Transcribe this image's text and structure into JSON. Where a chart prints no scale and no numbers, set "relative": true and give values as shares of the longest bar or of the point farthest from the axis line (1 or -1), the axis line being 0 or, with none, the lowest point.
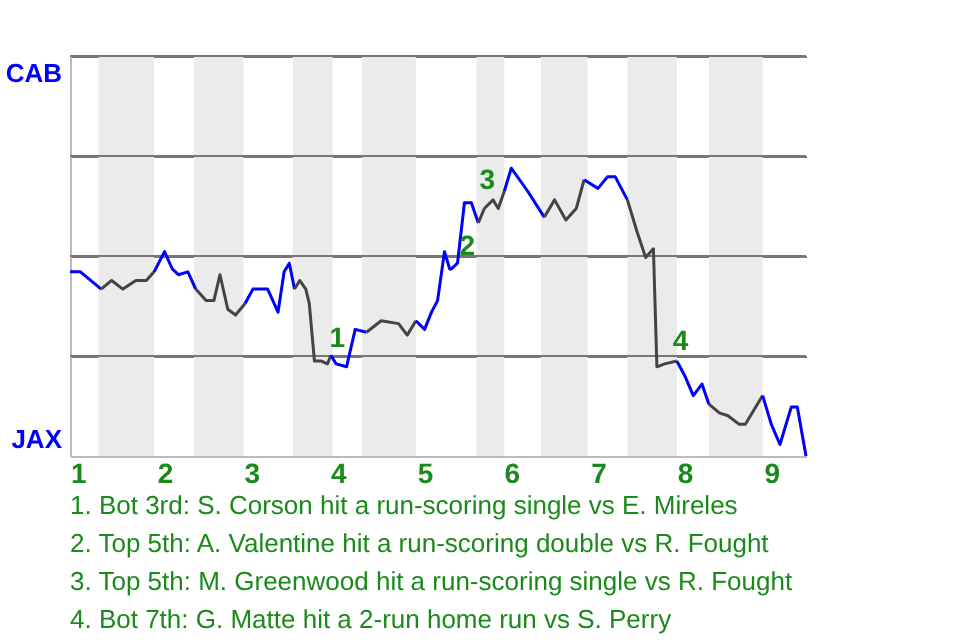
{
  "chart_data": {
    "type": "line",
    "relative": true,
    "series": [
      {
        "color": "#0000ff",
        "x": [
          0.91,
          1.03,
          1.27
        ],
        "values": [
          0.64,
          0.64,
          0.58
        ]
      },
      {
        "color": "#444444",
        "x": [
          1.27,
          1.39,
          1.52,
          1.67,
          1.79,
          1.88
        ],
        "values": [
          0.58,
          0.61,
          0.58,
          0.61,
          0.61,
          0.64
        ]
      },
      {
        "color": "#0000ff",
        "x": [
          1.88,
          2.0,
          2.09,
          2.16,
          2.27,
          2.36
        ],
        "values": [
          0.64,
          0.71,
          0.65,
          0.63,
          0.64,
          0.58
        ]
      },
      {
        "color": "#444444",
        "x": [
          2.36,
          2.48,
          2.57,
          2.64,
          2.73,
          2.82,
          2.93
        ],
        "values": [
          0.58,
          0.54,
          0.54,
          0.63,
          0.51,
          0.49,
          0.53
        ]
      },
      {
        "color": "#0000ff",
        "x": [
          2.93,
          3.02,
          3.19,
          3.31,
          3.38,
          3.44,
          3.5
        ],
        "values": [
          0.53,
          0.58,
          0.58,
          0.5,
          0.64,
          0.67,
          0.58
        ]
      },
      {
        "color": "#444444",
        "x": [
          3.5,
          3.56,
          3.63,
          3.67,
          3.73,
          3.81,
          3.88,
          3.92
        ],
        "values": [
          0.58,
          0.61,
          0.58,
          0.53,
          0.33,
          0.33,
          0.32,
          0.35
        ]
      },
      {
        "color": "#0000ff",
        "x": [
          3.92,
          3.98,
          4.1,
          4.2,
          4.33
        ],
        "values": [
          0.35,
          0.32,
          0.31,
          0.44,
          0.43
        ]
      },
      {
        "color": "#444444",
        "x": [
          4.33,
          4.5,
          4.7,
          4.8,
          4.9
        ],
        "values": [
          0.43,
          0.47,
          0.46,
          0.42,
          0.47
        ]
      },
      {
        "color": "#0000ff",
        "x": [
          4.9,
          5.0,
          5.08,
          5.15,
          5.23,
          5.29,
          5.31,
          5.38,
          5.46,
          5.54,
          5.62
        ],
        "values": [
          0.47,
          0.44,
          0.5,
          0.54,
          0.71,
          0.65,
          0.65,
          0.67,
          0.88,
          0.88,
          0.81
        ]
      },
      {
        "color": "#444444",
        "x": [
          5.62,
          5.69,
          5.79,
          5.85,
          5.92
        ],
        "values": [
          0.81,
          0.86,
          0.89,
          0.86,
          0.92
        ]
      },
      {
        "color": "#0000ff",
        "x": [
          5.92,
          6.0,
          6.19,
          6.38
        ],
        "values": [
          0.92,
          1,
          0.92,
          0.83
        ]
      },
      {
        "color": "#444444",
        "x": [
          6.38,
          6.5,
          6.63,
          6.75,
          6.84
        ],
        "values": [
          0.83,
          0.89,
          0.82,
          0.86,
          0.96
        ]
      },
      {
        "color": "#0000ff",
        "x": [
          6.84,
          7.0,
          7.11,
          7.2,
          7.34
        ],
        "values": [
          0.96,
          0.93,
          0.97,
          0.97,
          0.89
        ]
      },
      {
        "color": "#444444",
        "x": [
          7.34,
          7.45,
          7.55,
          7.64,
          7.68,
          7.77,
          7.91
        ],
        "values": [
          0.89,
          0.78,
          0.69,
          0.72,
          0.31,
          0.32,
          0.33
        ]
      },
      {
        "color": "#0000ff",
        "x": [
          7.91,
          8.0,
          8.1,
          8.2,
          8.28
        ],
        "values": [
          0.33,
          0.28,
          0.21,
          0.25,
          0.18
        ]
      },
      {
        "color": "#444444",
        "x": [
          8.28,
          8.4,
          8.5,
          8.63,
          8.7,
          8.78,
          8.9
        ],
        "values": [
          0.18,
          0.15,
          0.14,
          0.11,
          0.11,
          0.15,
          0.21
        ]
      },
      {
        "color": "#0000ff",
        "x": [
          8.9,
          9.0,
          9.1,
          9.23,
          9.3,
          9.4
        ],
        "values": [
          0.21,
          0.11,
          0.04,
          0.17,
          0.17,
          0
        ]
      }
    ],
    "xlim": [
      0.91,
      9.4
    ],
    "xticks": [
      1,
      2,
      3,
      4,
      5,
      6,
      7,
      8,
      9
    ],
    "grid": "y",
    "marker": "none",
    "bands": [
      {
        "axis": "x",
        "from": 1.24,
        "to": 1.88,
        "color": "#ebebeb"
      },
      {
        "axis": "x",
        "from": 2.34,
        "to": 2.91,
        "color": "#ebebeb"
      },
      {
        "axis": "x",
        "from": 3.48,
        "to": 3.94,
        "color": "#ebebeb"
      },
      {
        "axis": "x",
        "from": 4.28,
        "to": 4.9,
        "color": "#ebebeb"
      },
      {
        "axis": "x",
        "from": 5.6,
        "to": 5.92,
        "color": "#ebebeb"
      },
      {
        "axis": "x",
        "from": 6.34,
        "to": 6.88,
        "color": "#ebebeb"
      },
      {
        "axis": "x",
        "from": 7.34,
        "to": 7.91,
        "color": "#ebebeb"
      },
      {
        "axis": "x",
        "from": 8.28,
        "to": 8.9,
        "color": "#ebebeb"
      }
    ],
    "annotations": [
      "CAB",
      "JAX",
      {
        "text": "1",
        "x": 3.81,
        "y": 0.33
      },
      {
        "text": "2",
        "x": 5.31,
        "y": 0.65
      },
      {
        "text": "3",
        "x": 5.54,
        "y": 0.88
      },
      {
        "text": "4",
        "x": 7.77,
        "y": 0.32
      },
      "1. Bot 3rd: S. Corson hit a run-scoring single vs E. Mireles",
      "2. Top 5th: A. Valentine hit a run-scoring double vs R. Fought",
      "3. Top 5th: M. Greenwood hit a run-scoring single vs R. Fought",
      "4. Bot 7th: G. Matte hit a 2-run home run vs S. Perry"
    ]
  }
}
